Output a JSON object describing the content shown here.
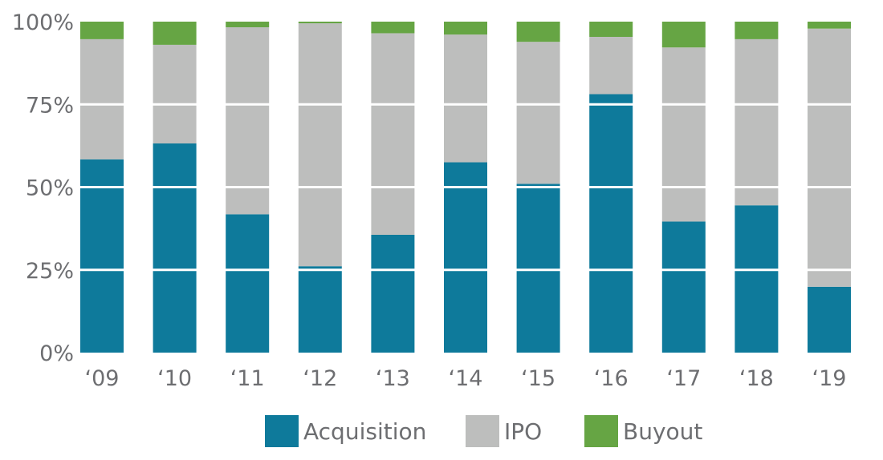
{
  "chart_data": {
    "type": "bar",
    "stacked": true,
    "categories": [
      "‘09",
      "‘10",
      "‘11",
      "‘12",
      "‘13",
      "‘14",
      "‘15",
      "‘16",
      "‘17",
      "‘18",
      "‘19"
    ],
    "series": [
      {
        "name": "Acquisition",
        "color": "#0e7a9b",
        "values": [
          58.4,
          63.2,
          41.8,
          26.1,
          35.6,
          57.5,
          51.0,
          78.1,
          39.6,
          44.5,
          19.9
        ]
      },
      {
        "name": "IPO",
        "color": "#bdbebd",
        "values": [
          36.3,
          29.8,
          56.5,
          73.4,
          60.9,
          38.6,
          42.9,
          17.3,
          52.6,
          50.2,
          78.0
        ]
      },
      {
        "name": "Buyout",
        "color": "#66a544",
        "values": [
          5.3,
          7.0,
          1.7,
          0.5,
          3.5,
          3.9,
          6.1,
          4.6,
          7.8,
          5.3,
          2.1
        ]
      }
    ],
    "ylim": [
      0,
      100
    ],
    "yticks": [
      0,
      25,
      50,
      75,
      100
    ],
    "ytick_labels": [
      "0%",
      "25%",
      "50%",
      "75%",
      "100%"
    ],
    "grid": "horizontal white lines over bars",
    "legend_placement": "bottom",
    "title": "",
    "xlabel": "",
    "ylabel": ""
  }
}
